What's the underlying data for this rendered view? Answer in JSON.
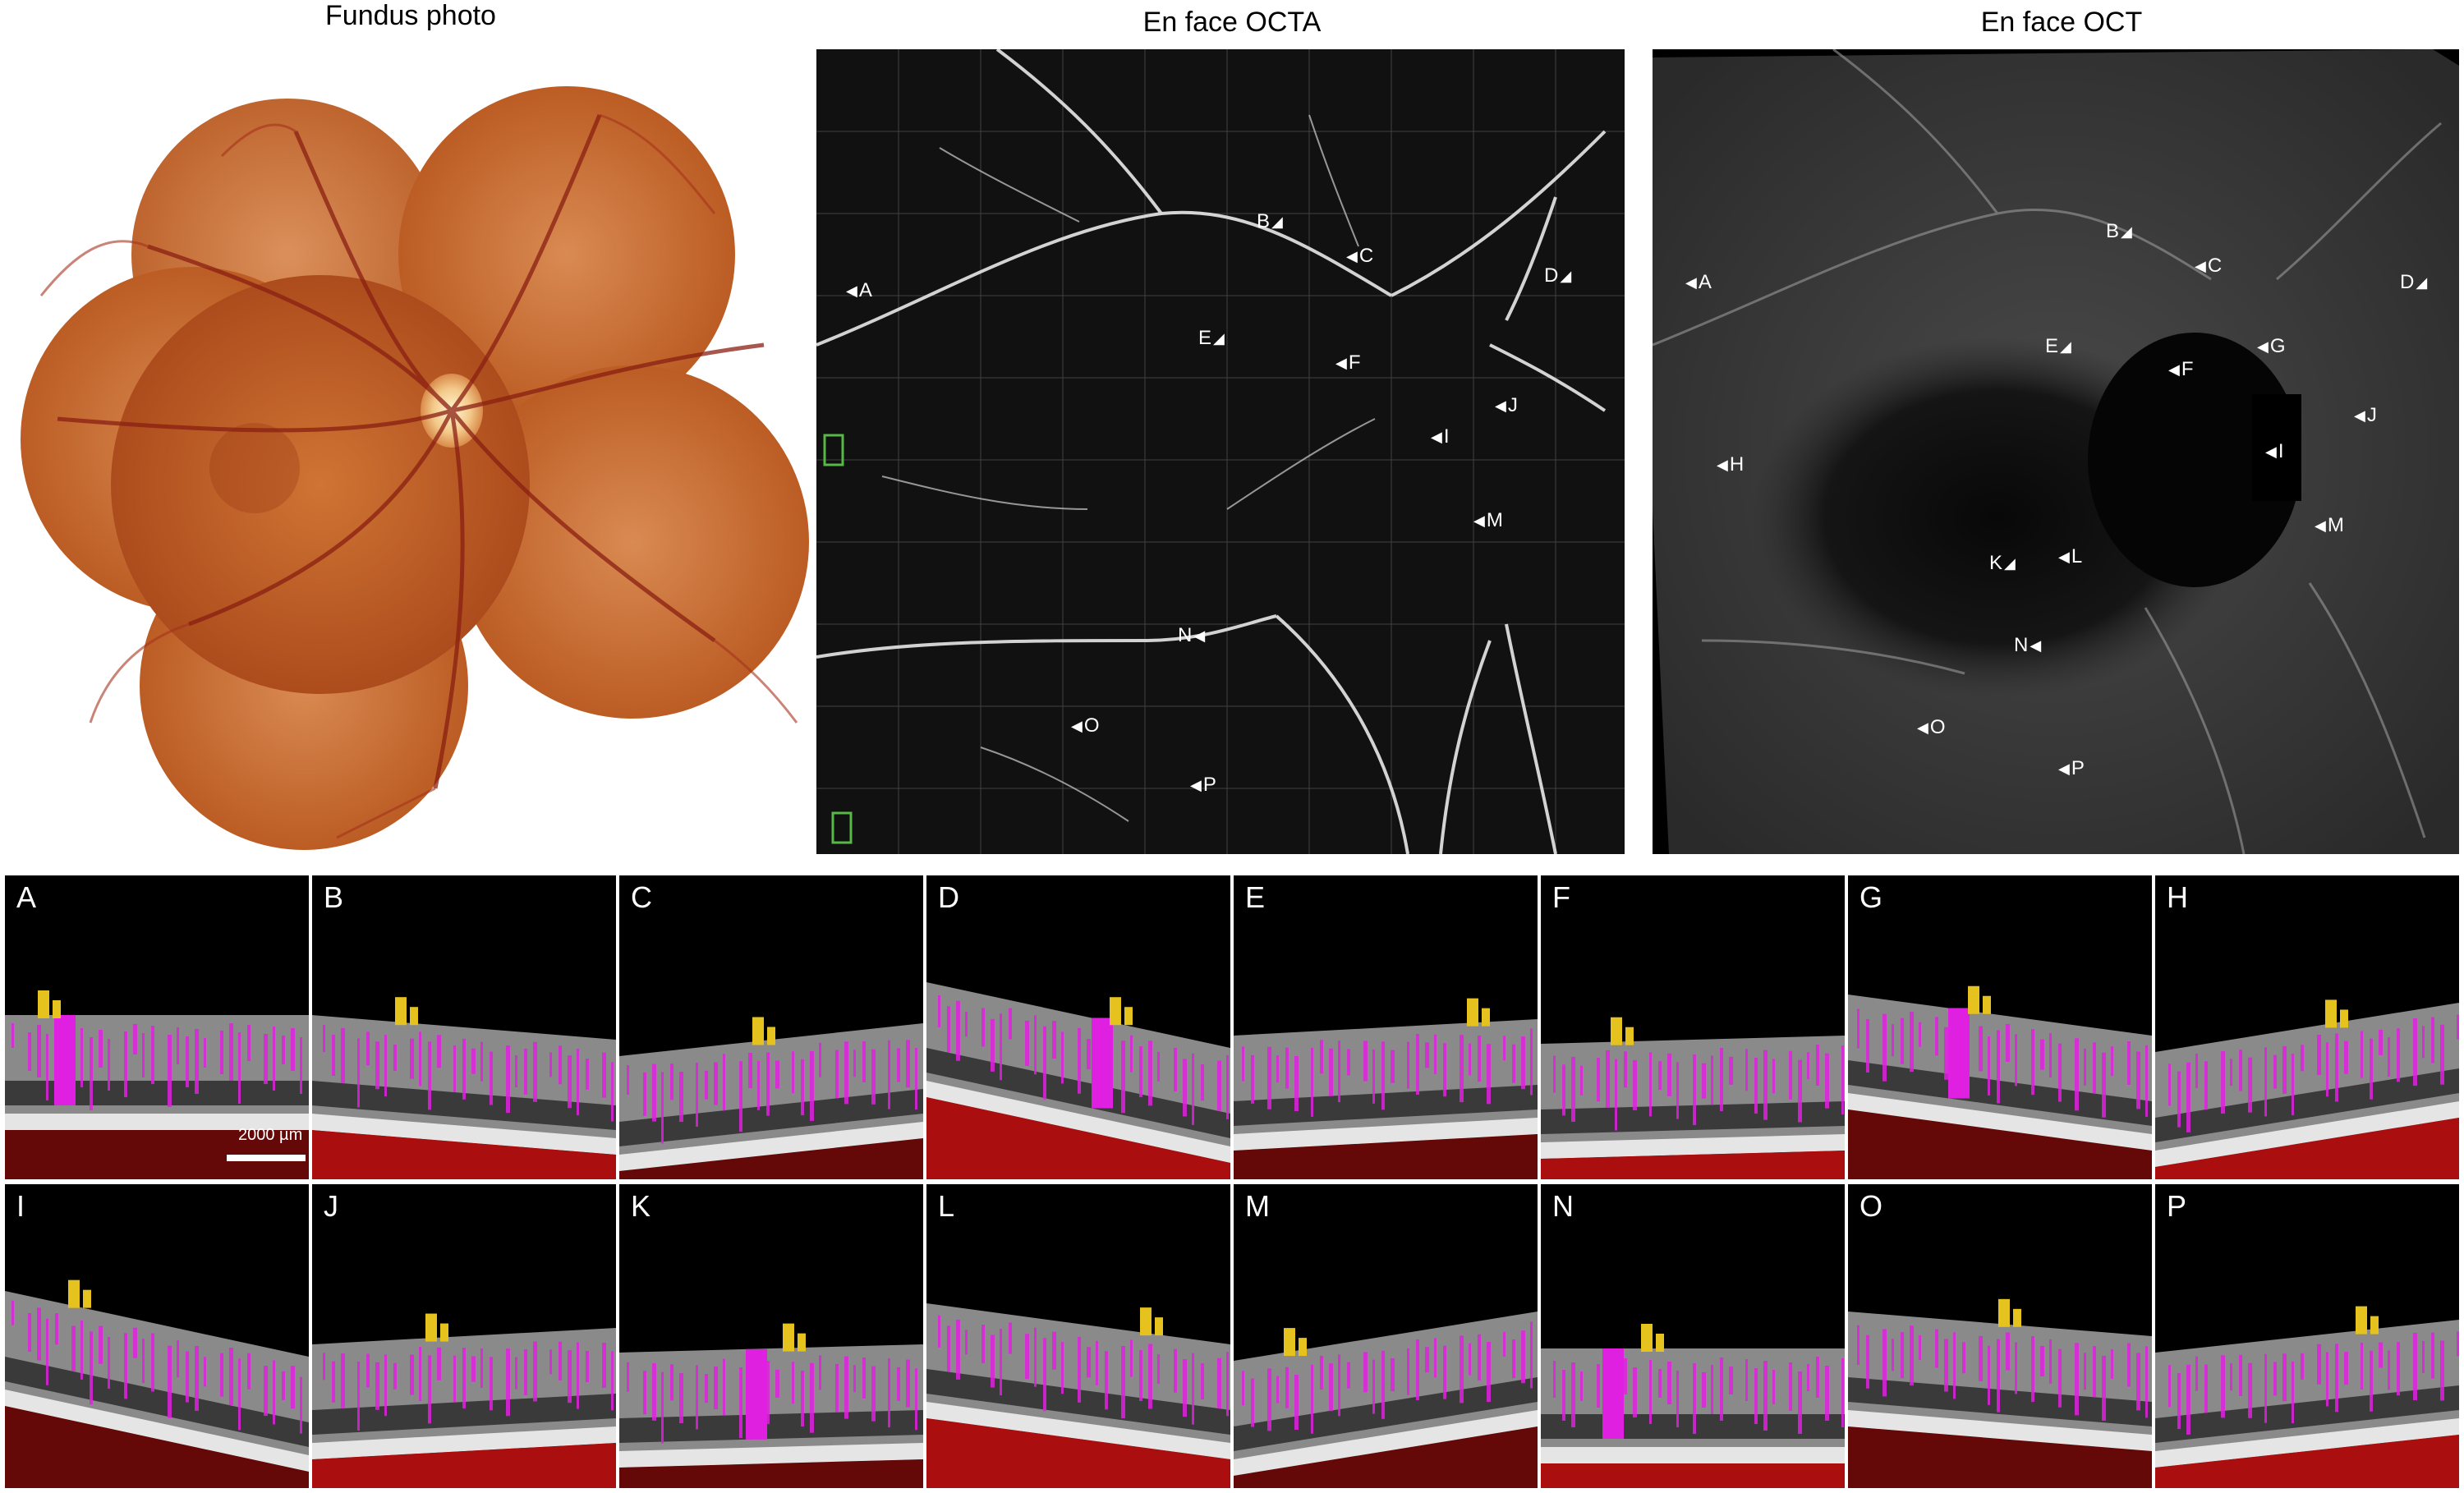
{
  "titles": {
    "fundus": "Fundus photo",
    "octa": "En face OCTA",
    "oct": "En face OCT"
  },
  "octa_markers": [
    "A",
    "B",
    "C",
    "D",
    "E",
    "F",
    "I",
    "J",
    "M",
    "N",
    "O",
    "P"
  ],
  "oct_markers": [
    "A",
    "B",
    "C",
    "D",
    "E",
    "F",
    "G",
    "H",
    "I",
    "J",
    "K",
    "L",
    "M",
    "N",
    "O",
    "P"
  ],
  "scale_bar": {
    "label": "2000 µm"
  },
  "scans_row1": [
    "A",
    "B",
    "C",
    "D",
    "E",
    "F",
    "G",
    "H"
  ],
  "scans_row2": [
    "I",
    "J",
    "K",
    "L",
    "M",
    "N",
    "O",
    "P"
  ],
  "colors": {
    "background": "#000000",
    "magenta": "#e020e0",
    "yellow": "#e6c21e",
    "red": "#c81010",
    "fundus_orange": "#c76a2a"
  }
}
